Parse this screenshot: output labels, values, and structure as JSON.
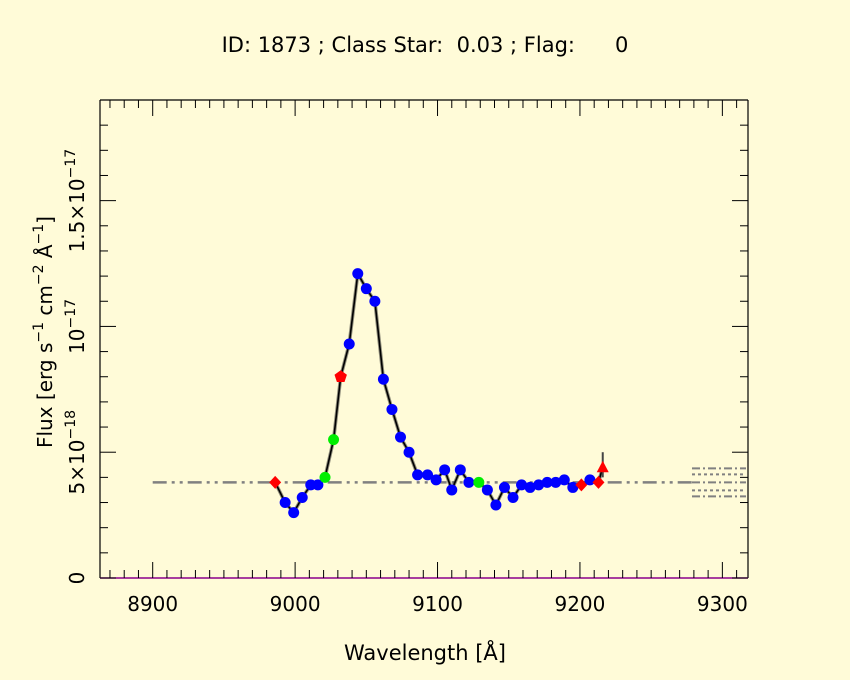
{
  "chart_data": {
    "type": "line",
    "title": "ID: 1873 ; Class Star:  0.03 ; Flag:      0",
    "xlabel": "Wavelength [Å]",
    "ylabel": {
      "prefix": "Flux [erg s",
      "exp1": "−1",
      "mid1": " cm",
      "exp2": "−2",
      "mid2": " Å",
      "exp3": "−1",
      "suffix": "]"
    },
    "xlim": [
      8863,
      9318
    ],
    "ylim": [
      0,
      1.9e-17
    ],
    "x_ticks": [
      {
        "value": 8900,
        "label": "8900"
      },
      {
        "value": 9000,
        "label": "9000"
      },
      {
        "value": 9100,
        "label": "9100"
      },
      {
        "value": 9200,
        "label": "9200"
      },
      {
        "value": 9300,
        "label": "9300"
      }
    ],
    "y_ticks": [
      {
        "value": 0,
        "base": "0",
        "exp": ""
      },
      {
        "value": 5e-18,
        "base": "5×10",
        "exp": "−18"
      },
      {
        "value": 1e-17,
        "base": "10",
        "exp": "−17"
      },
      {
        "value": 1.5e-17,
        "base": "1.5×10",
        "exp": "−17"
      }
    ],
    "continuum_level": 3.8e-18,
    "continuum_range": [
      8900,
      9280
    ],
    "spectrum": [
      {
        "x": 8986,
        "y": 3.8e-18,
        "marker": "diamond"
      },
      {
        "x": 8993,
        "y": 3e-18,
        "marker": "circle"
      },
      {
        "x": 8999,
        "y": 2.6e-18,
        "marker": "circle"
      },
      {
        "x": 9005,
        "y": 3.2e-18,
        "marker": "circle"
      },
      {
        "x": 9011,
        "y": 3.7e-18,
        "marker": "circle"
      },
      {
        "x": 9016,
        "y": 3.7e-18,
        "marker": "circle"
      },
      {
        "x": 9021,
        "y": 4e-18,
        "marker": "green-circle"
      },
      {
        "x": 9027,
        "y": 5.5e-18,
        "marker": "green-circle"
      },
      {
        "x": 9032,
        "y": 8e-18,
        "marker": "pentagon"
      },
      {
        "x": 9038,
        "y": 9.3e-18,
        "marker": "circle"
      },
      {
        "x": 9044,
        "y": 1.21e-17,
        "marker": "circle"
      },
      {
        "x": 9050,
        "y": 1.15e-17,
        "marker": "circle"
      },
      {
        "x": 9056,
        "y": 1.1e-17,
        "marker": "circle"
      },
      {
        "x": 9062,
        "y": 7.9e-18,
        "marker": "circle"
      },
      {
        "x": 9068,
        "y": 6.7e-18,
        "marker": "circle"
      },
      {
        "x": 9074,
        "y": 5.6e-18,
        "marker": "circle"
      },
      {
        "x": 9080,
        "y": 5e-18,
        "marker": "circle"
      },
      {
        "x": 9086,
        "y": 4.1e-18,
        "marker": "circle"
      },
      {
        "x": 9093,
        "y": 4.1e-18,
        "marker": "circle"
      },
      {
        "x": 9099,
        "y": 3.9e-18,
        "marker": "circle"
      },
      {
        "x": 9105,
        "y": 4.3e-18,
        "marker": "circle"
      },
      {
        "x": 9110,
        "y": 3.5e-18,
        "marker": "circle"
      },
      {
        "x": 9116,
        "y": 4.3e-18,
        "marker": "circle"
      },
      {
        "x": 9122,
        "y": 3.8e-18,
        "marker": "circle"
      },
      {
        "x": 9129,
        "y": 3.8e-18,
        "marker": "green-circle"
      },
      {
        "x": 9135,
        "y": 3.5e-18,
        "marker": "circle"
      },
      {
        "x": 9141,
        "y": 2.9e-18,
        "marker": "circle"
      },
      {
        "x": 9147,
        "y": 3.6e-18,
        "marker": "circle"
      },
      {
        "x": 9153,
        "y": 3.2e-18,
        "marker": "circle"
      },
      {
        "x": 9159,
        "y": 3.7e-18,
        "marker": "circle"
      },
      {
        "x": 9165,
        "y": 3.6e-18,
        "marker": "circle"
      },
      {
        "x": 9171,
        "y": 3.7e-18,
        "marker": "circle"
      },
      {
        "x": 9177,
        "y": 3.8e-18,
        "marker": "circle"
      },
      {
        "x": 9183,
        "y": 3.8e-18,
        "marker": "circle"
      },
      {
        "x": 9189,
        "y": 3.9e-18,
        "marker": "circle"
      },
      {
        "x": 9195,
        "y": 3.6e-18,
        "marker": "circle"
      },
      {
        "x": 9201,
        "y": 3.7e-18,
        "marker": "diamond"
      },
      {
        "x": 9207,
        "y": 3.9e-18,
        "marker": "circle"
      },
      {
        "x": 9213,
        "y": 3.8e-18,
        "marker": "diamond"
      },
      {
        "x": 9216,
        "y": 4.4e-18,
        "marker": "triangle"
      }
    ],
    "error_bar": {
      "x": 9216,
      "low": 4e-18,
      "high": 5e-18
    },
    "colors": {
      "background": "#fffbd8",
      "line": "#000000",
      "marker_blue": "#0000ff",
      "marker_green": "#00ee00",
      "marker_red": "#ff0000",
      "continuum": "#808080",
      "axis_bottom": "#8b008b"
    }
  }
}
